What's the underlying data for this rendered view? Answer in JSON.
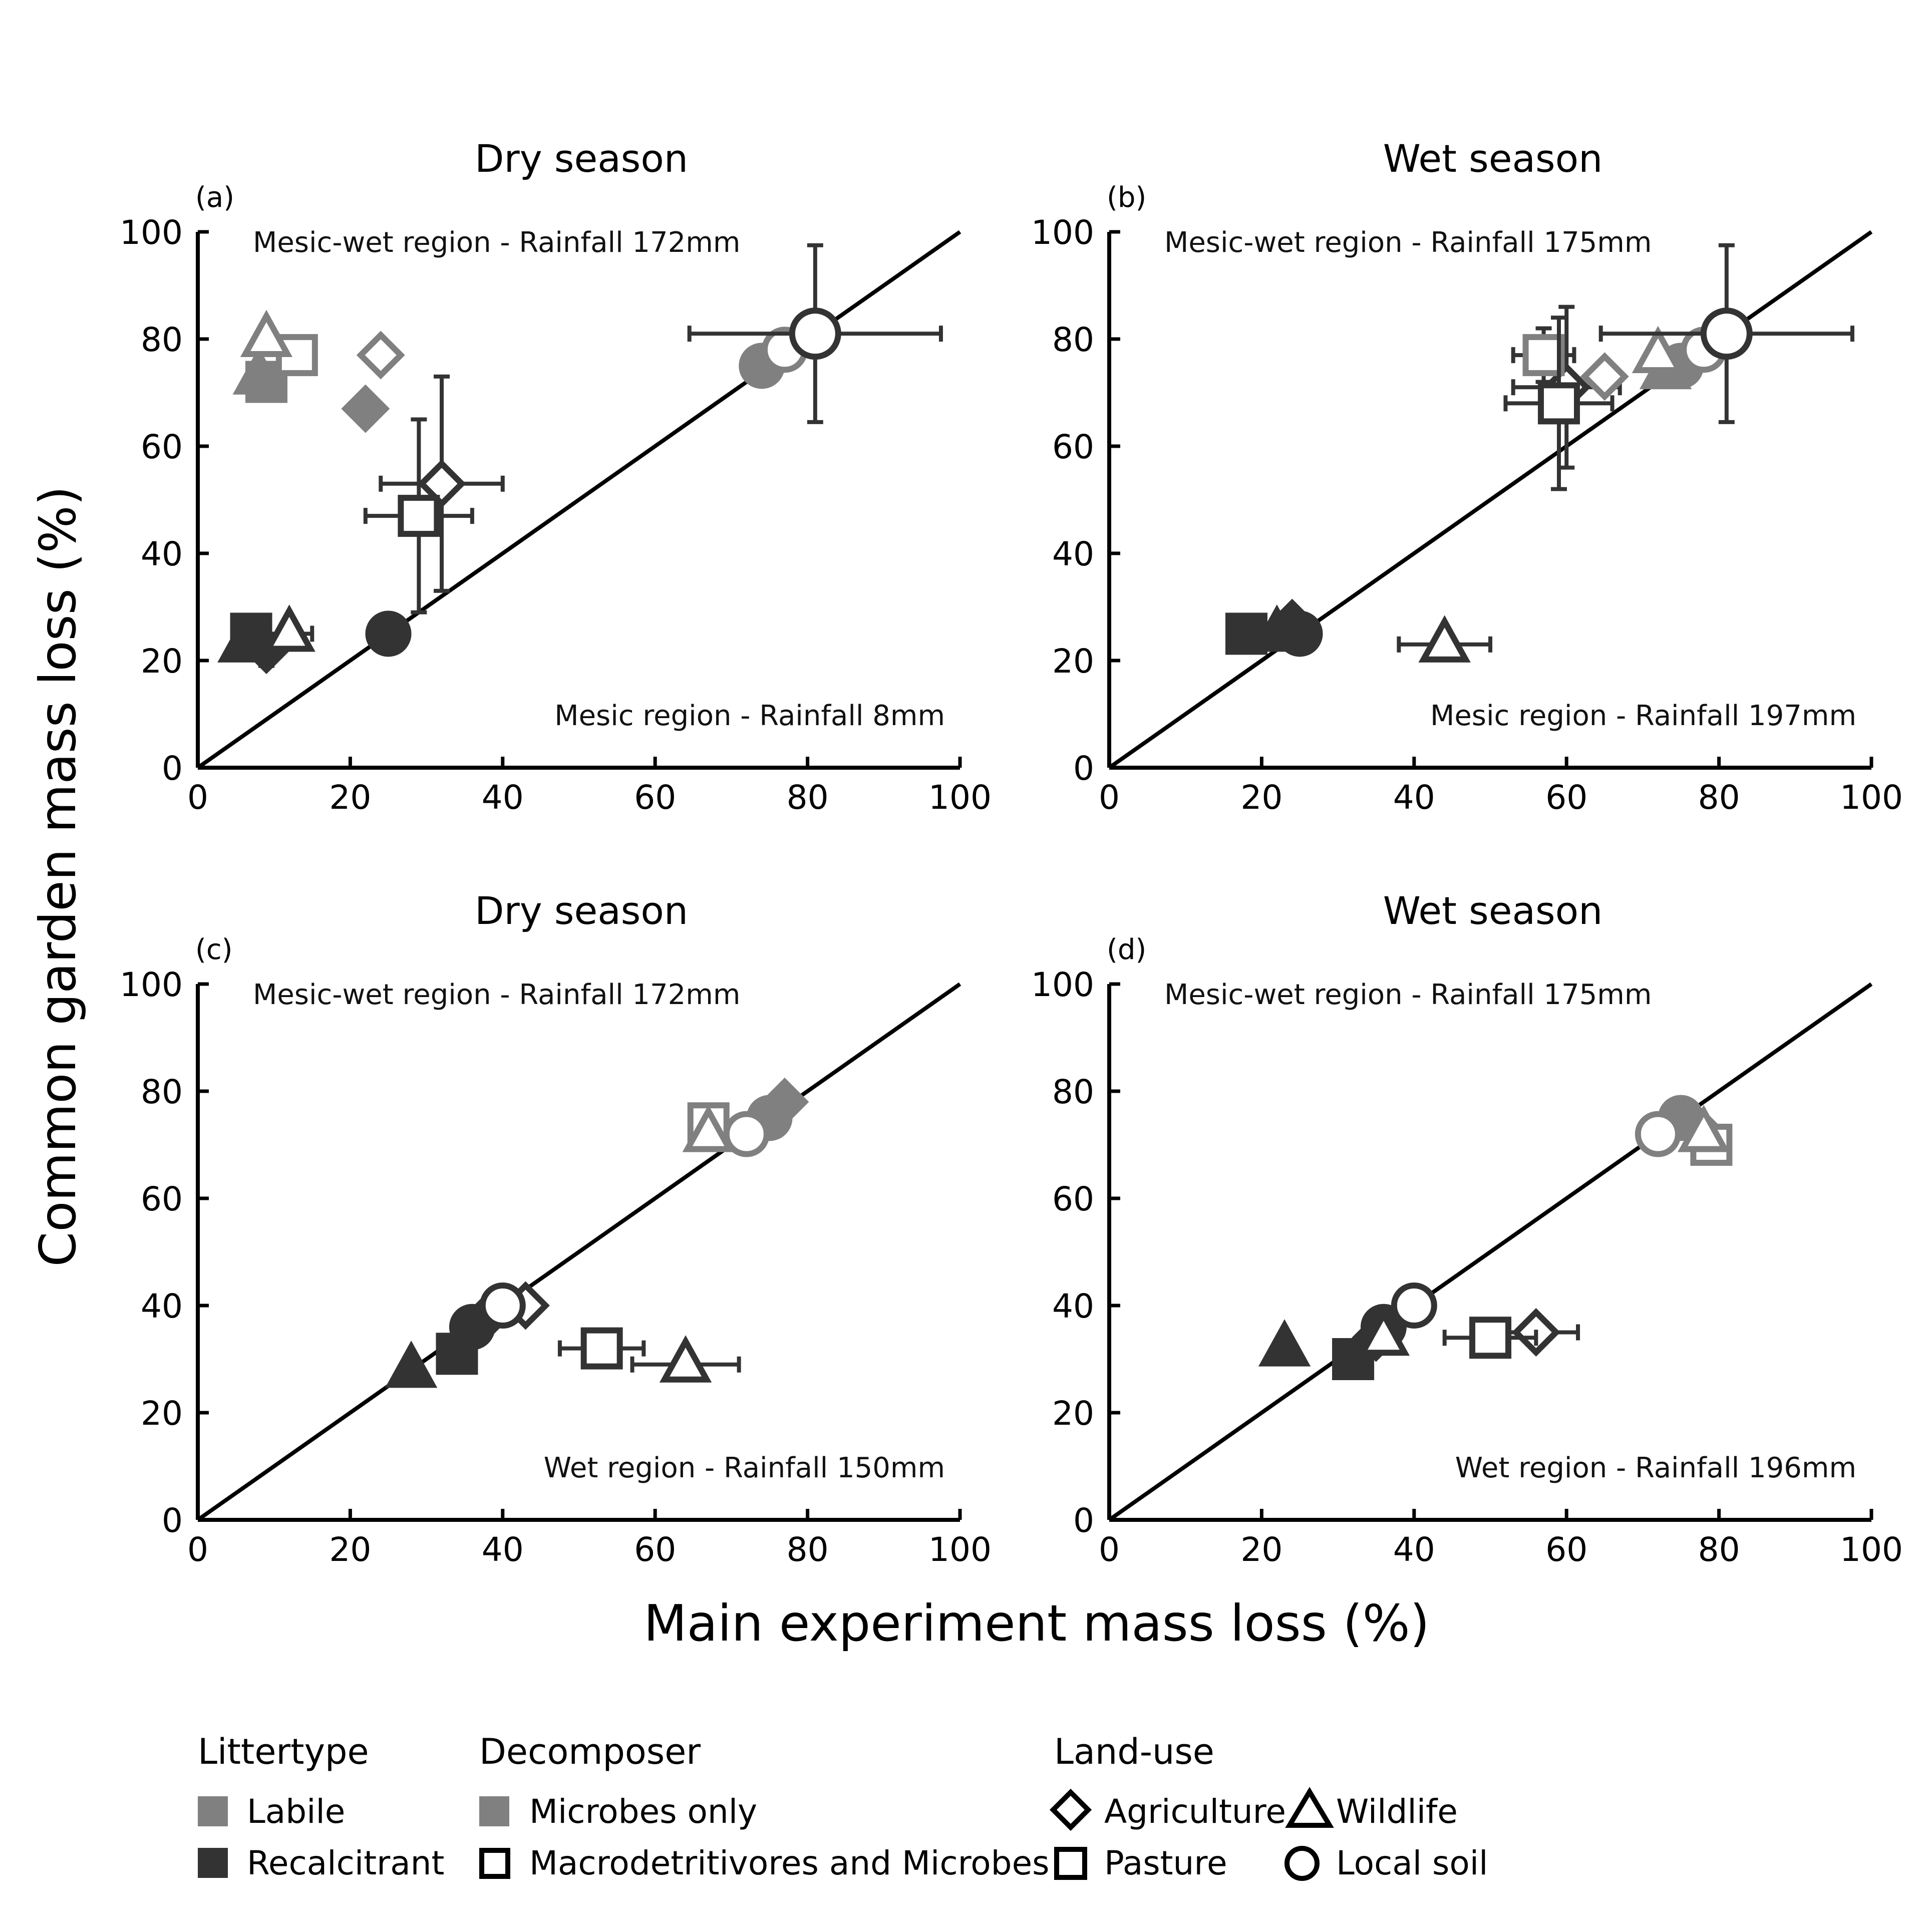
{
  "figure": {
    "xlabel": "Main experiment mass loss (%)",
    "ylabel": "Common garden mass loss (%)"
  },
  "colors": {
    "labile": "#808080",
    "recalcitrant": "#333333",
    "axis": "#000000",
    "errorbar": "#333333"
  },
  "legend": {
    "littertype_title": "Littertype",
    "labile": "Labile",
    "recalcitrant": "Recalcitrant",
    "decomposer_title": "Decomposer",
    "microbes_only": "Microbes only",
    "macro_and_microbes": "Macrodetritivores and Microbes",
    "landuse_title": "Land-use",
    "agriculture": "Agriculture",
    "wildlife": "Wildlife",
    "pasture": "Pasture",
    "local_soil": "Local soil"
  },
  "chart_data": [
    {
      "type": "scatter",
      "panel": "(a)",
      "title": "Dry season",
      "annotation_top": "Mesic-wet region - Rainfall 172mm",
      "annotation_bottom": "Mesic region - Rainfall 8mm",
      "xlim": [
        0,
        100
      ],
      "ylim": [
        0,
        100
      ],
      "xticks": [
        0,
        20,
        40,
        60,
        80,
        100
      ],
      "yticks": [
        0,
        20,
        40,
        60,
        80,
        100
      ],
      "reference_line": "1:1",
      "points": [
        {
          "x": 9,
          "y": 72,
          "landuse": "pasture",
          "litter": "labile",
          "decomposer": "microbes_only"
        },
        {
          "x": 8,
          "y": 73,
          "landuse": "wildlife",
          "litter": "labile",
          "decomposer": "microbes_only"
        },
        {
          "x": 13,
          "y": 77,
          "landuse": "pasture",
          "litter": "labile",
          "decomposer": "macro_and_microbes"
        },
        {
          "x": 9,
          "y": 80,
          "landuse": "wildlife",
          "litter": "labile",
          "decomposer": "macro_and_microbes"
        },
        {
          "x": 24,
          "y": 77,
          "landuse": "agriculture",
          "litter": "labile",
          "decomposer": "macro_and_microbes"
        },
        {
          "x": 22,
          "y": 67,
          "landuse": "agriculture",
          "litter": "labile",
          "decomposer": "microbes_only"
        },
        {
          "x": 32,
          "y": 53,
          "xerr": 8,
          "yerr": 20,
          "landuse": "agriculture",
          "litter": "recalcitrant",
          "decomposer": "macro_and_microbes"
        },
        {
          "x": 29,
          "y": 47,
          "xerr": 7,
          "yerr": 18,
          "landuse": "pasture",
          "litter": "recalcitrant",
          "decomposer": "macro_and_microbes"
        },
        {
          "x": 7,
          "y": 25,
          "yerr": 3,
          "landuse": "pasture",
          "litter": "recalcitrant",
          "decomposer": "microbes_only"
        },
        {
          "x": 6,
          "y": 23,
          "landuse": "wildlife",
          "litter": "recalcitrant",
          "decomposer": "microbes_only"
        },
        {
          "x": 9,
          "y": 22,
          "yerr": 3,
          "landuse": "agriculture",
          "litter": "recalcitrant",
          "decomposer": "microbes_only"
        },
        {
          "x": 12,
          "y": 25,
          "xerr": 3,
          "landuse": "wildlife",
          "litter": "recalcitrant",
          "decomposer": "macro_and_microbes"
        },
        {
          "x": 25,
          "y": 25,
          "landuse": "local_soil",
          "litter": "recalcitrant",
          "decomposer": "microbes_only"
        },
        {
          "x": 74,
          "y": 75,
          "landuse": "local_soil",
          "litter": "labile",
          "decomposer": "microbes_only"
        },
        {
          "x": 77,
          "y": 78,
          "landuse": "local_soil",
          "litter": "labile",
          "decomposer": "macro_and_microbes"
        },
        {
          "x": 81,
          "y": 81,
          "xerr": 16.5,
          "yerr": 16.5,
          "landuse": "local_soil",
          "litter": "recalcitrant",
          "decomposer": "macro_and_microbes"
        }
      ]
    },
    {
      "type": "scatter",
      "panel": "(b)",
      "title": "Wet season",
      "annotation_top": "Mesic-wet region - Rainfall 175mm",
      "annotation_bottom": "Mesic region - Rainfall 197mm",
      "xlim": [
        0,
        100
      ],
      "ylim": [
        0,
        100
      ],
      "xticks": [
        0,
        20,
        40,
        60,
        80,
        100
      ],
      "yticks": [
        0,
        20,
        40,
        60,
        80,
        100
      ],
      "reference_line": "1:1",
      "points": [
        {
          "x": 18,
          "y": 25,
          "landuse": "pasture",
          "litter": "recalcitrant",
          "decomposer": "microbes_only"
        },
        {
          "x": 22,
          "y": 25,
          "landuse": "wildlife",
          "litter": "recalcitrant",
          "decomposer": "microbes_only"
        },
        {
          "x": 24,
          "y": 27,
          "landuse": "agriculture",
          "litter": "recalcitrant",
          "decomposer": "microbes_only"
        },
        {
          "x": 25,
          "y": 25,
          "landuse": "local_soil",
          "litter": "recalcitrant",
          "decomposer": "microbes_only"
        },
        {
          "x": 44,
          "y": 23,
          "xerr": 6,
          "landuse": "wildlife",
          "litter": "recalcitrant",
          "decomposer": "macro_and_microbes"
        },
        {
          "x": 57,
          "y": 77,
          "xerr": 4,
          "yerr": 5,
          "landuse": "pasture",
          "litter": "labile",
          "decomposer": "macro_and_microbes"
        },
        {
          "x": 60,
          "y": 71,
          "xerr": 7,
          "yerr": 15,
          "landuse": "agriculture",
          "litter": "recalcitrant",
          "decomposer": "macro_and_microbes"
        },
        {
          "x": 59,
          "y": 68,
          "xerr": 7,
          "yerr": 16,
          "landuse": "pasture",
          "litter": "recalcitrant",
          "decomposer": "macro_and_microbes"
        },
        {
          "x": 65,
          "y": 73,
          "landuse": "agriculture",
          "litter": "labile",
          "decomposer": "macro_and_microbes"
        },
        {
          "x": 72,
          "y": 77,
          "landuse": "wildlife",
          "litter": "labile",
          "decomposer": "macro_and_microbes"
        },
        {
          "x": 73,
          "y": 74,
          "landuse": "wildlife",
          "litter": "labile",
          "decomposer": "microbes_only"
        },
        {
          "x": 75,
          "y": 75,
          "landuse": "local_soil",
          "litter": "labile",
          "decomposer": "microbes_only"
        },
        {
          "x": 78,
          "y": 78,
          "landuse": "local_soil",
          "litter": "labile",
          "decomposer": "macro_and_microbes"
        },
        {
          "x": 81,
          "y": 81,
          "xerr": 16.5,
          "yerr": 16.5,
          "landuse": "local_soil",
          "litter": "recalcitrant",
          "decomposer": "macro_and_microbes"
        }
      ]
    },
    {
      "type": "scatter",
      "panel": "(c)",
      "title": "Dry season",
      "annotation_top": "Mesic-wet region - Rainfall 172mm",
      "annotation_bottom": "Wet region - Rainfall 150mm",
      "xlim": [
        0,
        100
      ],
      "ylim": [
        0,
        100
      ],
      "xticks": [
        0,
        20,
        40,
        60,
        80,
        100
      ],
      "yticks": [
        0,
        20,
        40,
        60,
        80,
        100
      ],
      "reference_line": "1:1",
      "points": [
        {
          "x": 28,
          "y": 28,
          "landuse": "wildlife",
          "litter": "recalcitrant",
          "decomposer": "microbes_only"
        },
        {
          "x": 34,
          "y": 31,
          "landuse": "pasture",
          "litter": "recalcitrant",
          "decomposer": "microbes_only"
        },
        {
          "x": 36,
          "y": 36,
          "landuse": "local_soil",
          "litter": "recalcitrant",
          "decomposer": "microbes_only"
        },
        {
          "x": 38,
          "y": 38,
          "landuse": "agriculture",
          "litter": "recalcitrant",
          "decomposer": "microbes_only"
        },
        {
          "x": 43,
          "y": 40,
          "landuse": "agriculture",
          "litter": "recalcitrant",
          "decomposer": "macro_and_microbes"
        },
        {
          "x": 40,
          "y": 40,
          "landuse": "local_soil",
          "litter": "recalcitrant",
          "decomposer": "macro_and_microbes"
        },
        {
          "x": 53,
          "y": 32,
          "xerr": 5.5,
          "landuse": "pasture",
          "litter": "recalcitrant",
          "decomposer": "macro_and_microbes"
        },
        {
          "x": 64,
          "y": 29,
          "xerr": 7,
          "landuse": "wildlife",
          "litter": "recalcitrant",
          "decomposer": "macro_and_microbes"
        },
        {
          "x": 67,
          "y": 74,
          "landuse": "pasture",
          "litter": "labile",
          "decomposer": "macro_and_microbes"
        },
        {
          "x": 67,
          "y": 72,
          "landuse": "wildlife",
          "litter": "labile",
          "decomposer": "macro_and_microbes"
        },
        {
          "x": 75,
          "y": 75,
          "landuse": "local_soil",
          "litter": "labile",
          "decomposer": "microbes_only"
        },
        {
          "x": 77,
          "y": 78,
          "landuse": "agriculture",
          "litter": "labile",
          "decomposer": "microbes_only"
        },
        {
          "x": 72,
          "y": 72,
          "landuse": "local_soil",
          "litter": "labile",
          "decomposer": "macro_and_microbes"
        }
      ]
    },
    {
      "type": "scatter",
      "panel": "(d)",
      "title": "Wet season",
      "annotation_top": "Mesic-wet region - Rainfall 175mm",
      "annotation_bottom": "Wet region - Rainfall 196mm",
      "xlim": [
        0,
        100
      ],
      "ylim": [
        0,
        100
      ],
      "xticks": [
        0,
        20,
        40,
        60,
        80,
        100
      ],
      "yticks": [
        0,
        20,
        40,
        60,
        80,
        100
      ],
      "reference_line": "1:1",
      "points": [
        {
          "x": 23,
          "y": 32,
          "landuse": "wildlife",
          "litter": "recalcitrant",
          "decomposer": "microbes_only"
        },
        {
          "x": 32,
          "y": 30,
          "landuse": "pasture",
          "litter": "recalcitrant",
          "decomposer": "microbes_only"
        },
        {
          "x": 35,
          "y": 34,
          "landuse": "agriculture",
          "litter": "recalcitrant",
          "decomposer": "microbes_only"
        },
        {
          "x": 36,
          "y": 36,
          "landuse": "local_soil",
          "litter": "recalcitrant",
          "decomposer": "microbes_only"
        },
        {
          "x": 36,
          "y": 34,
          "landuse": "wildlife",
          "litter": "recalcitrant",
          "decomposer": "macro_and_microbes"
        },
        {
          "x": 40,
          "y": 40,
          "landuse": "local_soil",
          "litter": "recalcitrant",
          "decomposer": "macro_and_microbes"
        },
        {
          "x": 50,
          "y": 34,
          "xerr": 6,
          "landuse": "pasture",
          "litter": "recalcitrant",
          "decomposer": "macro_and_microbes"
        },
        {
          "x": 56,
          "y": 35,
          "xerr": 5.5,
          "landuse": "agriculture",
          "litter": "recalcitrant",
          "decomposer": "macro_and_microbes"
        },
        {
          "x": 75,
          "y": 75,
          "landuse": "local_soil",
          "litter": "labile",
          "decomposer": "microbes_only"
        },
        {
          "x": 78,
          "y": 72,
          "landuse": "agriculture",
          "litter": "labile",
          "decomposer": "macro_and_microbes"
        },
        {
          "x": 79,
          "y": 70,
          "landuse": "pasture",
          "litter": "labile",
          "decomposer": "macro_and_microbes"
        },
        {
          "x": 78,
          "y": 72,
          "landuse": "wildlife",
          "litter": "labile",
          "decomposer": "macro_and_microbes"
        },
        {
          "x": 72,
          "y": 72,
          "landuse": "local_soil",
          "litter": "labile",
          "decomposer": "macro_and_microbes"
        }
      ]
    }
  ]
}
